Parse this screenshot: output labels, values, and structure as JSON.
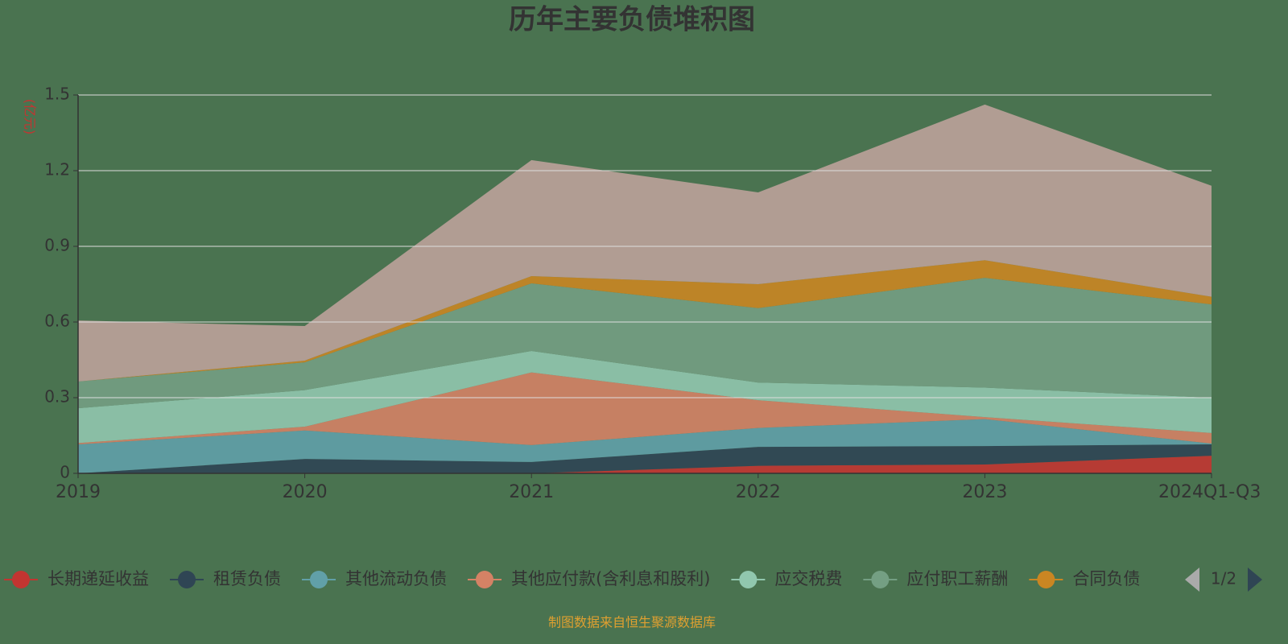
{
  "chart_data": {
    "type": "stacked-area",
    "title": "历年主要负债堆积图",
    "y_label": "(亿元)",
    "categories": [
      "2019",
      "2020",
      "2021",
      "2022",
      "2023",
      "2024Q1-Q3"
    ],
    "ylim": [
      0,
      1.5
    ],
    "yticks": [
      0,
      0.3,
      0.6,
      0.9,
      1.2,
      1.5
    ],
    "grid": true,
    "series": [
      {
        "name": "长期递延收益",
        "color": "#c23531",
        "values": [
          0,
          0,
          0,
          0.03,
          0.035,
          0.07
        ]
      },
      {
        "name": "租赁负债",
        "color": "#2f4554",
        "values": [
          0,
          0.057,
          0.045,
          0.075,
          0.073,
          0.045
        ]
      },
      {
        "name": "其他流动负债",
        "color": "#61a0a8",
        "values": [
          0.115,
          0.113,
          0.067,
          0.075,
          0.107,
          0.003
        ]
      },
      {
        "name": "其他应付款(含利息和股利)",
        "color": "#d48265",
        "values": [
          0.005,
          0.015,
          0.288,
          0.11,
          0.008,
          0.042
        ]
      },
      {
        "name": "应交税费",
        "color": "#91c7ae",
        "values": [
          0.138,
          0.145,
          0.085,
          0.07,
          0.117,
          0.14
        ]
      },
      {
        "name": "应付职工薪酬",
        "color": "#749f83",
        "values": [
          0.106,
          0.11,
          0.268,
          0.295,
          0.435,
          0.37
        ]
      },
      {
        "name": "合同负债",
        "color": "#ca8622",
        "values": [
          0,
          0.007,
          0.029,
          0.095,
          0.07,
          0.03
        ]
      },
      {
        "color": "#bda29a",
        "values": [
          0.242,
          0.137,
          0.46,
          0.364,
          0.617,
          0.44
        ]
      }
    ],
    "legend_page": "1/2",
    "source": "制图数据来自恒生聚源数据库"
  }
}
